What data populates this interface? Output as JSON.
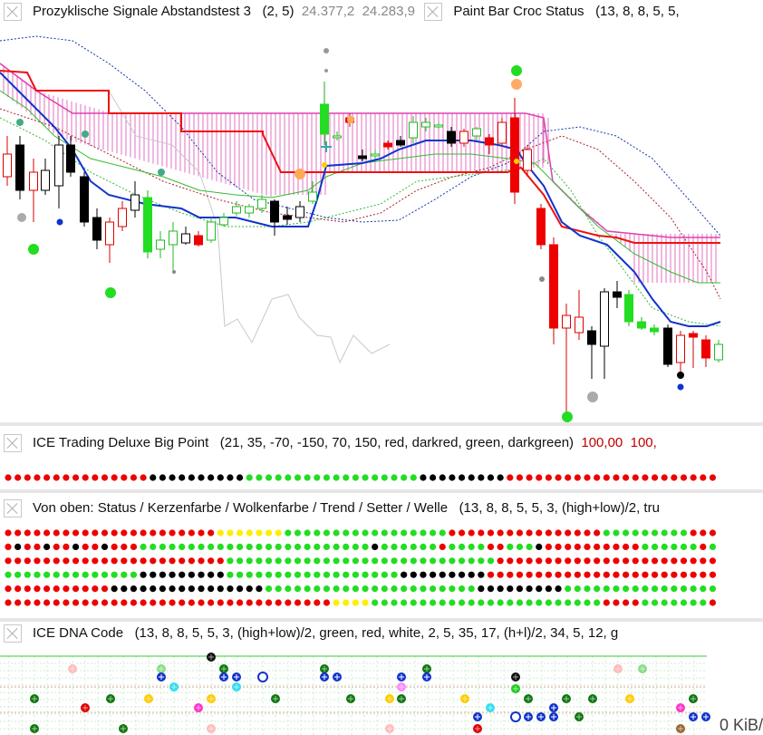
{
  "main_panel": {
    "indicator_1": {
      "name": "Prozyklische Signale Abstandstest 3",
      "params": "(2,  5)",
      "value_1": "24.377,2",
      "value_2": "24.283,9"
    },
    "indicator_2": {
      "name": "Paint Bar Croc Status",
      "params": "(13,  8,  8,  5,  5,"
    }
  },
  "panel_big_point": {
    "title": "ICE Trading Deluxe Big Point",
    "params": "(21,  35,  -70,  -150,  70,  150,  red,  darkred,  green,  darkgreen)",
    "value_1": "100,00",
    "value_2": "100,"
  },
  "panel_status": {
    "title": "Von oben: Status / Kerzenfarbe / Wolkenfarbe / Trend / Setter / Welle",
    "params": "(13,  8,  8,  5,  5,  3,  (high+low)/2,  tru"
  },
  "panel_dna": {
    "title": "ICE DNA Code",
    "params": "(13,  8,  8,  5,  5,  3,  (high+low)/2,  green,  red,  white,  2,  5,  35,  17,  (h+l)/2,  34,  5,  12,  g"
  },
  "status_bar": {
    "kib": "0 KiB/"
  },
  "colors": {
    "green": "#22dd22",
    "red": "#ee0000",
    "black": "#000000",
    "yellow": "#ffee00",
    "blue": "#1133cc",
    "magenta": "#ee33cc"
  },
  "dot_rows": {
    "big_point": "RRRRRRRRRRRRRRRKKKKKKKKKKGGGGGGGGGGGGGGGGGGKKKKKKKKKRRRRRRRRRRRRRRRRRRRRRR",
    "status": [
      "RRRRRRRRRRRRRRRRRRRRRRYYYYYYYGGGGGGGGGGGGGGGGGRRRRRRRRRRRRRRRRGGGGGGGGGRRRRR",
      "RKRRKRRKRRKRRRGGGGGGGGGGGGGGGGGGGGGGGGKGGGGGGRGGGGRRGGGKRRRRRRRRRRGGGGGGRGGRRR",
      "RRRRRRRRRRRRRRRRRRRRRRRGGGGGGGGGGGGGGGGGGGGGGGGGGGGRRRRRRRRRRRRRRRRRRRRRRRRRRR",
      "GGGGGGGGGGGGGGKKKKKKKKKGGGGGGGGGGGGGGGGGGKKKKKKKKKRRRRRRRRRRRRRRRRRRRRRRRRRRRR",
      "RRRRRRRRRRRKKKKKKKKKKKKKKKKGGGGGGGGGGGGGGGGGGGGGGKKKKKKKKKGGGGGGGGGGGGGGGGGGGGGG",
      "RRRRRRRRRRRRRRRRRRRRRRRRRRRRRRRRRRYYYYGGGGGGGGGGGGGGGGGGGGGGGGRRRRGGGGGGGRRRRRRR"
    ]
  }
}
